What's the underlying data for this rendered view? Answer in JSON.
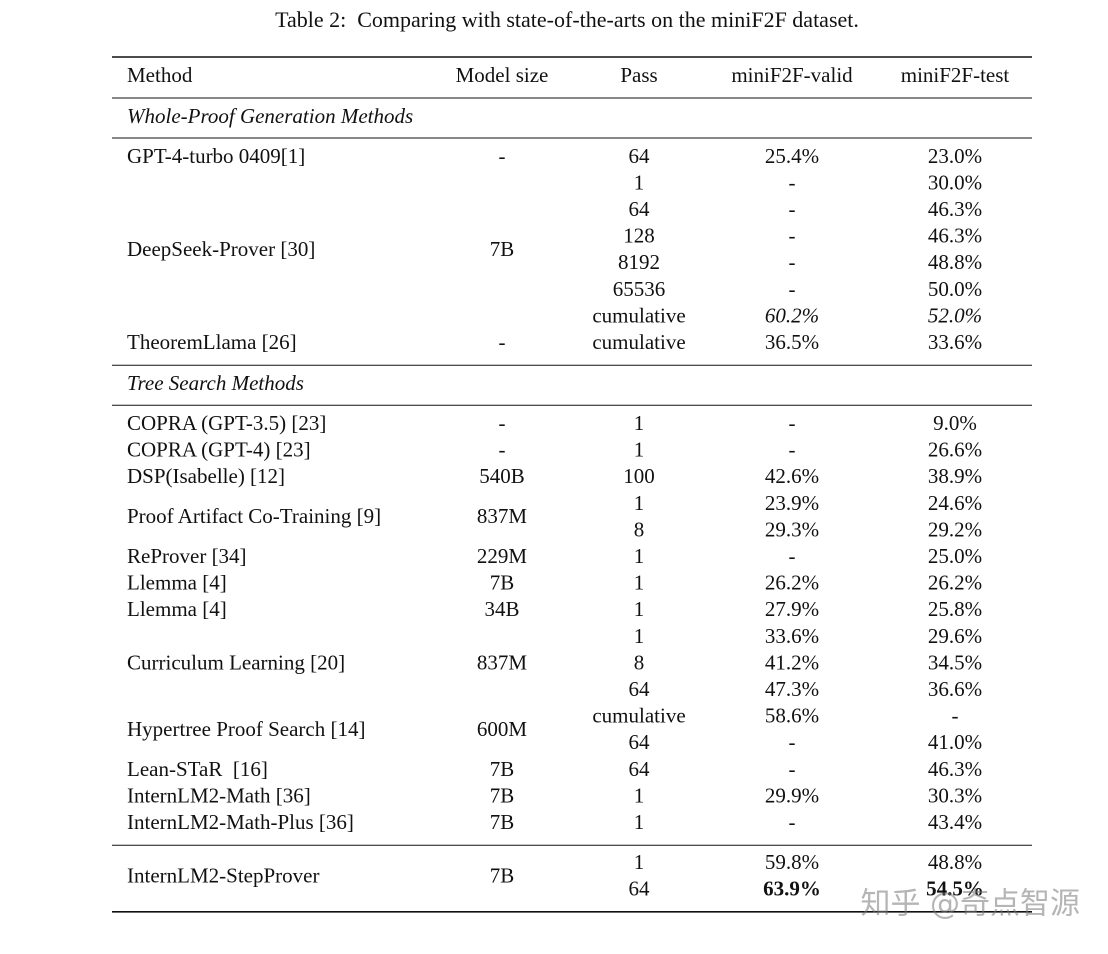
{
  "caption": "Table 2:  Comparing with state-of-the-arts on the miniF2F dataset.",
  "table": {
    "header": [
      "Method",
      "Model size",
      "Pass",
      "miniF2F-valid",
      "miniF2F-test"
    ],
    "sections": [
      {
        "title": "Whole-Proof Generation Methods",
        "groups": [
          {
            "method": "GPT-4-turbo 0409[1]",
            "size": "-",
            "rows": [
              [
                "64",
                "25.4%",
                "23.0%"
              ]
            ]
          },
          {
            "method": "DeepSeek-Prover [30]",
            "size": "7B",
            "rows": [
              [
                "1",
                "-",
                "30.0%"
              ],
              [
                "64",
                "-",
                "46.3%"
              ],
              [
                "128",
                "-",
                "46.3%"
              ],
              [
                "8192",
                "-",
                "48.8%"
              ],
              [
                "65536",
                "-",
                "50.0%"
              ],
              [
                "cumulative",
                "60.2%",
                "52.0%"
              ]
            ]
          },
          {
            "method": "TheoremLlama [26]",
            "size": "-",
            "rows": [
              [
                "cumulative",
                "36.5%",
                "33.6%"
              ]
            ]
          }
        ]
      },
      {
        "title": "Tree Search Methods",
        "groups": [
          {
            "method": "COPRA (GPT-3.5) [23]",
            "size": "-",
            "rows": [
              [
                "1",
                "-",
                "9.0%"
              ]
            ]
          },
          {
            "method": "COPRA (GPT-4) [23]",
            "size": "-",
            "rows": [
              [
                "1",
                "-",
                "26.6%"
              ]
            ]
          },
          {
            "method": "DSP(Isabelle) [12]",
            "size": "540B",
            "rows": [
              [
                "100",
                "42.6%",
                "38.9%"
              ]
            ]
          },
          {
            "method": "Proof Artifact Co-Training [9]",
            "size": "837M",
            "rows": [
              [
                "1",
                "23.9%",
                "24.6%"
              ],
              [
                "8",
                "29.3%",
                "29.2%"
              ]
            ]
          },
          {
            "method": "ReProver [34]",
            "size": "229M",
            "rows": [
              [
                "1",
                "-",
                "25.0%"
              ]
            ]
          },
          {
            "method": "Llemma [4]",
            "size": "7B",
            "rows": [
              [
                "1",
                "26.2%",
                "26.2%"
              ]
            ]
          },
          {
            "method": "Llemma [4]",
            "size": "34B",
            "rows": [
              [
                "1",
                "27.9%",
                "25.8%"
              ]
            ]
          },
          {
            "method": "Curriculum Learning [20]",
            "size": "837M",
            "rows": [
              [
                "1",
                "33.6%",
                "29.6%"
              ],
              [
                "8",
                "41.2%",
                "34.5%"
              ],
              [
                "64",
                "47.3%",
                "36.6%"
              ]
            ]
          },
          {
            "method": "Hypertree Proof Search [14]",
            "size": "600M",
            "rows": [
              [
                "cumulative",
                "58.6%",
                "-"
              ],
              [
                "64",
                "-",
                "41.0%"
              ]
            ]
          },
          {
            "method": "Lean-STaR  [16]",
            "size": "7B",
            "rows": [
              [
                "64",
                "-",
                "46.3%"
              ]
            ]
          },
          {
            "method": "InternLM2-Math [36]",
            "size": "7B",
            "rows": [
              [
                "1",
                "29.9%",
                "30.3%"
              ]
            ]
          },
          {
            "method": "InternLM2-Math-Plus [36]",
            "size": "7B",
            "rows": [
              [
                "1",
                "-",
                "43.4%"
              ]
            ]
          }
        ]
      },
      {
        "groups": [
          {
            "method": "InternLM2-StepProver",
            "size": "7B",
            "rows": [
              [
                "1",
                "59.8%",
                "48.8%"
              ],
              [
                "64",
                "63.9%",
                "54.5%"
              ]
            ]
          }
        ]
      }
    ]
  },
  "watermark": "知乎 @奇点智源"
}
